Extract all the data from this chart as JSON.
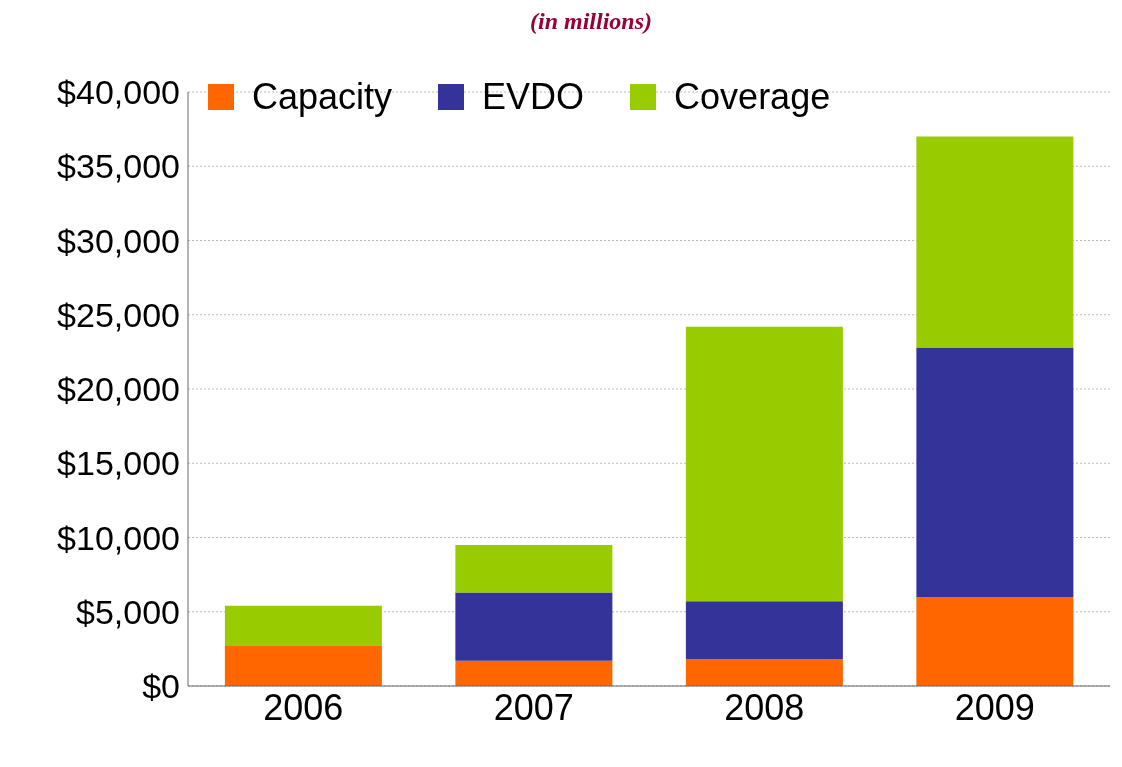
{
  "chart_data": {
    "type": "bar",
    "title": "(in millions)",
    "categories": [
      "2006",
      "2007",
      "2008",
      "2009"
    ],
    "series": [
      {
        "name": "Capacity",
        "color": "#ff6600",
        "values": [
          2700,
          1700,
          1800,
          6000
        ]
      },
      {
        "name": "EVDO",
        "color": "#333399",
        "values": [
          0,
          4600,
          3900,
          16800
        ]
      },
      {
        "name": "Coverage",
        "color": "#99cc00",
        "values": [
          2700,
          3200,
          18500,
          14200
        ]
      }
    ],
    "stacked": true,
    "ylim": [
      0,
      40000
    ],
    "yticks": [
      {
        "value": 0,
        "label": "$0"
      },
      {
        "value": 5000,
        "label": "$5,000"
      },
      {
        "value": 10000,
        "label": "$10,000"
      },
      {
        "value": 15000,
        "label": "$15,000"
      },
      {
        "value": 20000,
        "label": "$20,000"
      },
      {
        "value": 25000,
        "label": "$25,000"
      },
      {
        "value": 30000,
        "label": "$30,000"
      },
      {
        "value": 35000,
        "label": "$35,000"
      },
      {
        "value": 40000,
        "label": "$40,000"
      }
    ],
    "grid": "y",
    "legend": "top left"
  }
}
